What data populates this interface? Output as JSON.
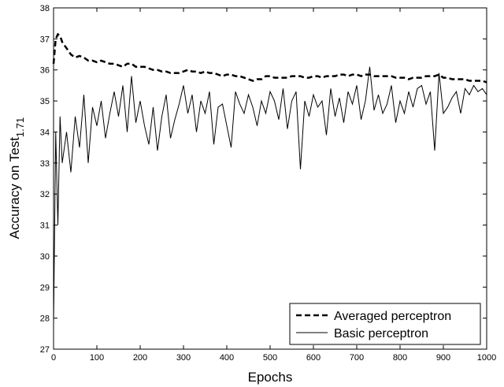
{
  "chart_data": {
    "type": "line",
    "xlabel": "Epochs",
    "ylabel": "Accuracy on Test",
    "ylabel_subscript": "1.71",
    "x": [
      0,
      5,
      10,
      15,
      20,
      30,
      40,
      50,
      60,
      70,
      80,
      90,
      100,
      110,
      120,
      130,
      140,
      150,
      160,
      170,
      180,
      190,
      200,
      210,
      220,
      230,
      240,
      250,
      260,
      270,
      280,
      290,
      300,
      310,
      320,
      330,
      340,
      350,
      360,
      370,
      380,
      390,
      400,
      410,
      420,
      430,
      440,
      450,
      460,
      470,
      480,
      490,
      500,
      510,
      520,
      530,
      540,
      550,
      560,
      570,
      580,
      590,
      600,
      610,
      620,
      630,
      640,
      650,
      660,
      670,
      680,
      690,
      700,
      710,
      720,
      730,
      740,
      750,
      760,
      770,
      780,
      790,
      800,
      810,
      820,
      830,
      840,
      850,
      860,
      870,
      880,
      890,
      900,
      910,
      920,
      930,
      940,
      950,
      960,
      970,
      980,
      990,
      1000
    ],
    "series": [
      {
        "name": "Averaged perceptron",
        "color": "#000000",
        "style": "dashed",
        "width": 2.5,
        "values": [
          36.2,
          37.0,
          37.15,
          37.1,
          36.9,
          36.7,
          36.5,
          36.4,
          36.45,
          36.4,
          36.3,
          36.3,
          36.25,
          36.3,
          36.25,
          36.2,
          36.2,
          36.15,
          36.1,
          36.2,
          36.2,
          36.1,
          36.1,
          36.1,
          36.05,
          36.0,
          36.0,
          35.95,
          35.95,
          35.9,
          35.9,
          35.9,
          35.95,
          36.0,
          35.95,
          35.95,
          35.9,
          35.95,
          35.9,
          35.9,
          35.85,
          35.8,
          35.85,
          35.85,
          35.8,
          35.8,
          35.75,
          35.7,
          35.65,
          35.7,
          35.7,
          35.8,
          35.8,
          35.75,
          35.75,
          35.75,
          35.75,
          35.8,
          35.8,
          35.8,
          35.75,
          35.75,
          35.8,
          35.8,
          35.75,
          35.8,
          35.8,
          35.8,
          35.85,
          35.85,
          35.8,
          35.85,
          35.85,
          35.8,
          35.85,
          35.85,
          35.8,
          35.8,
          35.8,
          35.8,
          35.8,
          35.75,
          35.75,
          35.75,
          35.7,
          35.75,
          35.75,
          35.75,
          35.8,
          35.8,
          35.8,
          35.85,
          35.75,
          35.75,
          35.7,
          35.7,
          35.7,
          35.7,
          35.65,
          35.65,
          35.65,
          35.65,
          35.6
        ]
      },
      {
        "name": "Basic perceptron",
        "color": "#000000",
        "style": "solid",
        "width": 1,
        "values": [
          27.8,
          34.0,
          31.0,
          34.5,
          33.0,
          34.0,
          32.7,
          34.5,
          33.5,
          35.2,
          33.0,
          34.8,
          34.2,
          35.0,
          33.8,
          34.6,
          35.3,
          34.5,
          35.5,
          34.0,
          35.8,
          34.3,
          35.0,
          34.2,
          33.6,
          34.8,
          33.4,
          34.5,
          35.2,
          33.8,
          34.4,
          34.9,
          35.5,
          34.6,
          35.2,
          34.0,
          35.0,
          34.6,
          35.3,
          33.6,
          34.8,
          34.9,
          34.2,
          33.5,
          35.3,
          34.9,
          34.6,
          35.2,
          34.8,
          34.2,
          35.0,
          34.6,
          35.3,
          35.0,
          34.4,
          35.4,
          34.1,
          35.0,
          35.3,
          32.8,
          35.0,
          34.5,
          35.2,
          34.8,
          35.0,
          33.9,
          35.4,
          34.5,
          35.1,
          34.3,
          35.3,
          34.9,
          35.5,
          34.4,
          35.0,
          36.1,
          34.7,
          35.2,
          34.6,
          34.9,
          35.5,
          34.3,
          35.0,
          34.6,
          35.3,
          34.8,
          35.4,
          35.5,
          34.9,
          35.3,
          33.4,
          35.9,
          34.6,
          34.8,
          35.1,
          35.3,
          34.6,
          35.4,
          35.2,
          35.5,
          35.3,
          35.4,
          35.2
        ]
      }
    ],
    "xlim": [
      0,
      1000
    ],
    "xticks": [
      0,
      100,
      200,
      300,
      400,
      500,
      600,
      700,
      800,
      900,
      1000
    ],
    "ylim": [
      27,
      38
    ],
    "yticks": [
      27,
      28,
      29,
      30,
      31,
      32,
      33,
      34,
      35,
      36,
      37,
      38
    ],
    "legend": "lower right"
  }
}
